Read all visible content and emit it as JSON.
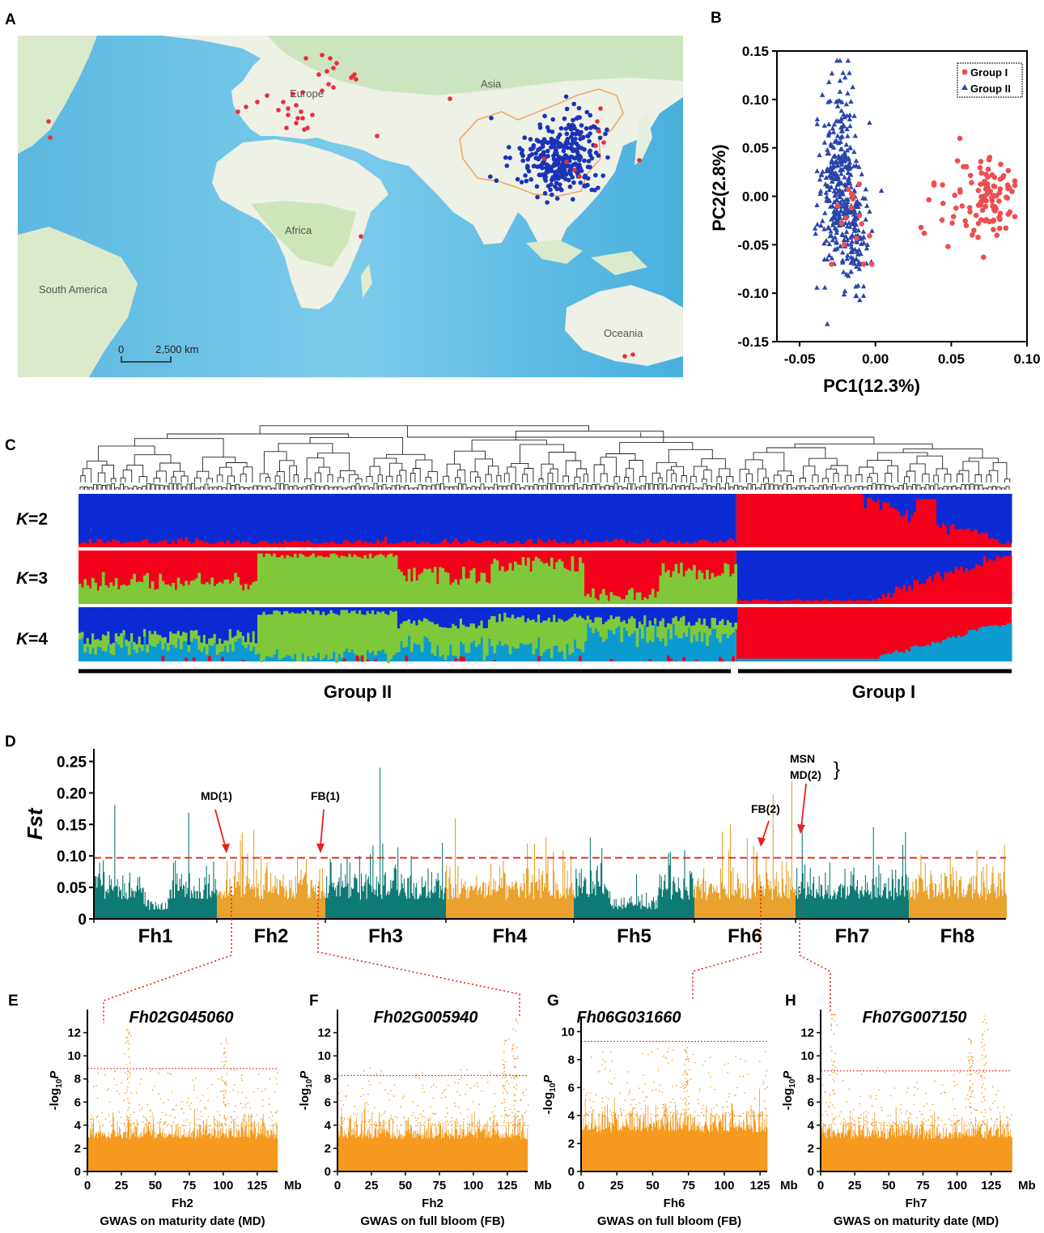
{
  "panels": {
    "a": "A",
    "b": "B",
    "c": "C",
    "d": "D",
    "e": "E",
    "f": "F",
    "g": "G",
    "h": "H"
  },
  "map": {
    "labels": {
      "europe": "Europe",
      "asia": "Asia",
      "africa": "Africa",
      "south_america": "South America",
      "oceania": "Oceania"
    },
    "scale_zero": "0",
    "scale_label": "2,500 km",
    "group1_color": "#ee2b3d",
    "group2_color": "#1a33b8"
  },
  "chart_data": [
    {
      "id": "B",
      "type": "scatter",
      "xlabel": "PC1(12.3%)",
      "ylabel": "PC2(2.8%)",
      "xlim": [
        -0.065,
        0.1
      ],
      "ylim": [
        -0.15,
        0.15
      ],
      "xticks": [
        "-0.05",
        "0.00",
        "0.05",
        "0.10"
      ],
      "xtick_values": [
        -0.05,
        0,
        0.05,
        0.1
      ],
      "yticks": [
        "0.15",
        "0.10",
        "0.05",
        "0.00",
        "-0.05",
        "-0.10",
        "-0.15"
      ],
      "ytick_values": [
        0.15,
        0.1,
        0.05,
        0,
        -0.05,
        -0.1,
        -0.15
      ],
      "legend": {
        "position": "top-right",
        "entries": [
          "Group I",
          "Group II"
        ]
      },
      "series": [
        {
          "name": "Group I",
          "color": "#ee4d52",
          "marker": "circle",
          "cluster": {
            "x_mean": 0.075,
            "x_sd": 0.008,
            "y_mean": 0.0,
            "y_sd": 0.02
          }
        },
        {
          "name": "Group II",
          "color": "#2a46a8",
          "marker": "triangle",
          "cluster": {
            "x_mean": -0.025,
            "x_sd": 0.006,
            "y_mean": 0.02,
            "y_sd": 0.045
          }
        }
      ]
    },
    {
      "id": "C",
      "type": "stacked-bar",
      "labels": [
        "K=2",
        "K=3",
        "K=4"
      ],
      "k_values": [
        2,
        3,
        4
      ],
      "groups": [
        "Group II",
        "Group I"
      ],
      "group_split_fraction": 0.705,
      "colors": {
        "red": "#f5001a",
        "blue": "#0a2bd4",
        "green": "#7ec83a",
        "cyan": "#0c9bd1"
      }
    },
    {
      "id": "D",
      "type": "bar",
      "ylabel": "Fst",
      "ylim": [
        0,
        0.27
      ],
      "yticks": [
        "0.25",
        "0.20",
        "0.15",
        "0.10",
        "0.05",
        "0"
      ],
      "ytick_values": [
        0.25,
        0.2,
        0.15,
        0.1,
        0.05,
        0
      ],
      "threshold": 0.097,
      "categories": [
        "Fh1",
        "Fh2",
        "Fh3",
        "Fh4",
        "Fh5",
        "Fh6",
        "Fh7",
        "Fh8"
      ],
      "colors": [
        "#0f7a73",
        "#e8a22d"
      ],
      "annotations": [
        "MD(1)",
        "FB(1)",
        "FB(2)",
        "MSN",
        "MD(2)"
      ]
    },
    {
      "id": "E",
      "type": "scatter",
      "title": "Fh02G045060",
      "xlabel": "Fh2",
      "caption": "GWAS on maturity date (MD)",
      "unit": "Mb",
      "xticks": [
        "0",
        "25",
        "50",
        "75",
        "100",
        "125"
      ],
      "xtick_values": [
        0,
        25,
        50,
        75,
        100,
        125
      ],
      "xmax": 140,
      "yticks": [
        "0",
        "2",
        "4",
        "6",
        "8",
        "10",
        "12"
      ],
      "ytick_values": [
        0,
        2,
        4,
        6,
        8,
        10,
        12
      ],
      "ymax": 14,
      "threshold": 8.9,
      "ylabel_main": "-log",
      "ylabel_sub": "10",
      "ylabel_var": "P",
      "color": "#f59a1e"
    },
    {
      "id": "F",
      "type": "scatter",
      "title": "Fh02G005940",
      "xlabel": "Fh2",
      "caption": "GWAS on full bloom (FB)",
      "unit": "Mb",
      "xticks": [
        "0",
        "25",
        "50",
        "75",
        "100",
        "125"
      ],
      "xtick_values": [
        0,
        25,
        50,
        75,
        100,
        125
      ],
      "xmax": 140,
      "yticks": [
        "0",
        "2",
        "4",
        "6",
        "8",
        "10",
        "12"
      ],
      "ytick_values": [
        0,
        2,
        4,
        6,
        8,
        10,
        12
      ],
      "ymax": 14,
      "threshold": 8.3,
      "ylabel_main": "-log",
      "ylabel_sub": "10",
      "ylabel_var": "P",
      "color": "#f59a1e"
    },
    {
      "id": "G",
      "type": "scatter",
      "title": "Fh06G031660",
      "xlabel": "Fh6",
      "caption": "GWAS on full bloom (FB)",
      "unit": "Mb",
      "xticks": [
        "0",
        "25",
        "50",
        "75",
        "100",
        "125"
      ],
      "xtick_values": [
        0,
        25,
        50,
        75,
        100,
        125
      ],
      "xmax": 130,
      "yticks": [
        "0",
        "2",
        "4",
        "6",
        "8",
        "10"
      ],
      "ytick_values": [
        0,
        2,
        4,
        6,
        8,
        10
      ],
      "ymax": 11,
      "threshold": 9.3,
      "ylabel_main": "-log",
      "ylabel_sub": "10",
      "ylabel_var": "P",
      "color": "#f59a1e"
    },
    {
      "id": "H",
      "type": "scatter",
      "title": "Fh07G007150",
      "xlabel": "Fh7",
      "caption": "GWAS on maturity date (MD)",
      "unit": "Mb",
      "xticks": [
        "0",
        "25",
        "50",
        "75",
        "100",
        "125"
      ],
      "xtick_values": [
        0,
        25,
        50,
        75,
        100,
        125
      ],
      "xmax": 140,
      "yticks": [
        "0",
        "2",
        "4",
        "6",
        "8",
        "10",
        "12"
      ],
      "ytick_values": [
        0,
        2,
        4,
        6,
        8,
        10,
        12
      ],
      "ymax": 14,
      "threshold": 8.7,
      "ylabel_main": "-log",
      "ylabel_sub": "10",
      "ylabel_var": "P",
      "color": "#f59a1e"
    }
  ]
}
